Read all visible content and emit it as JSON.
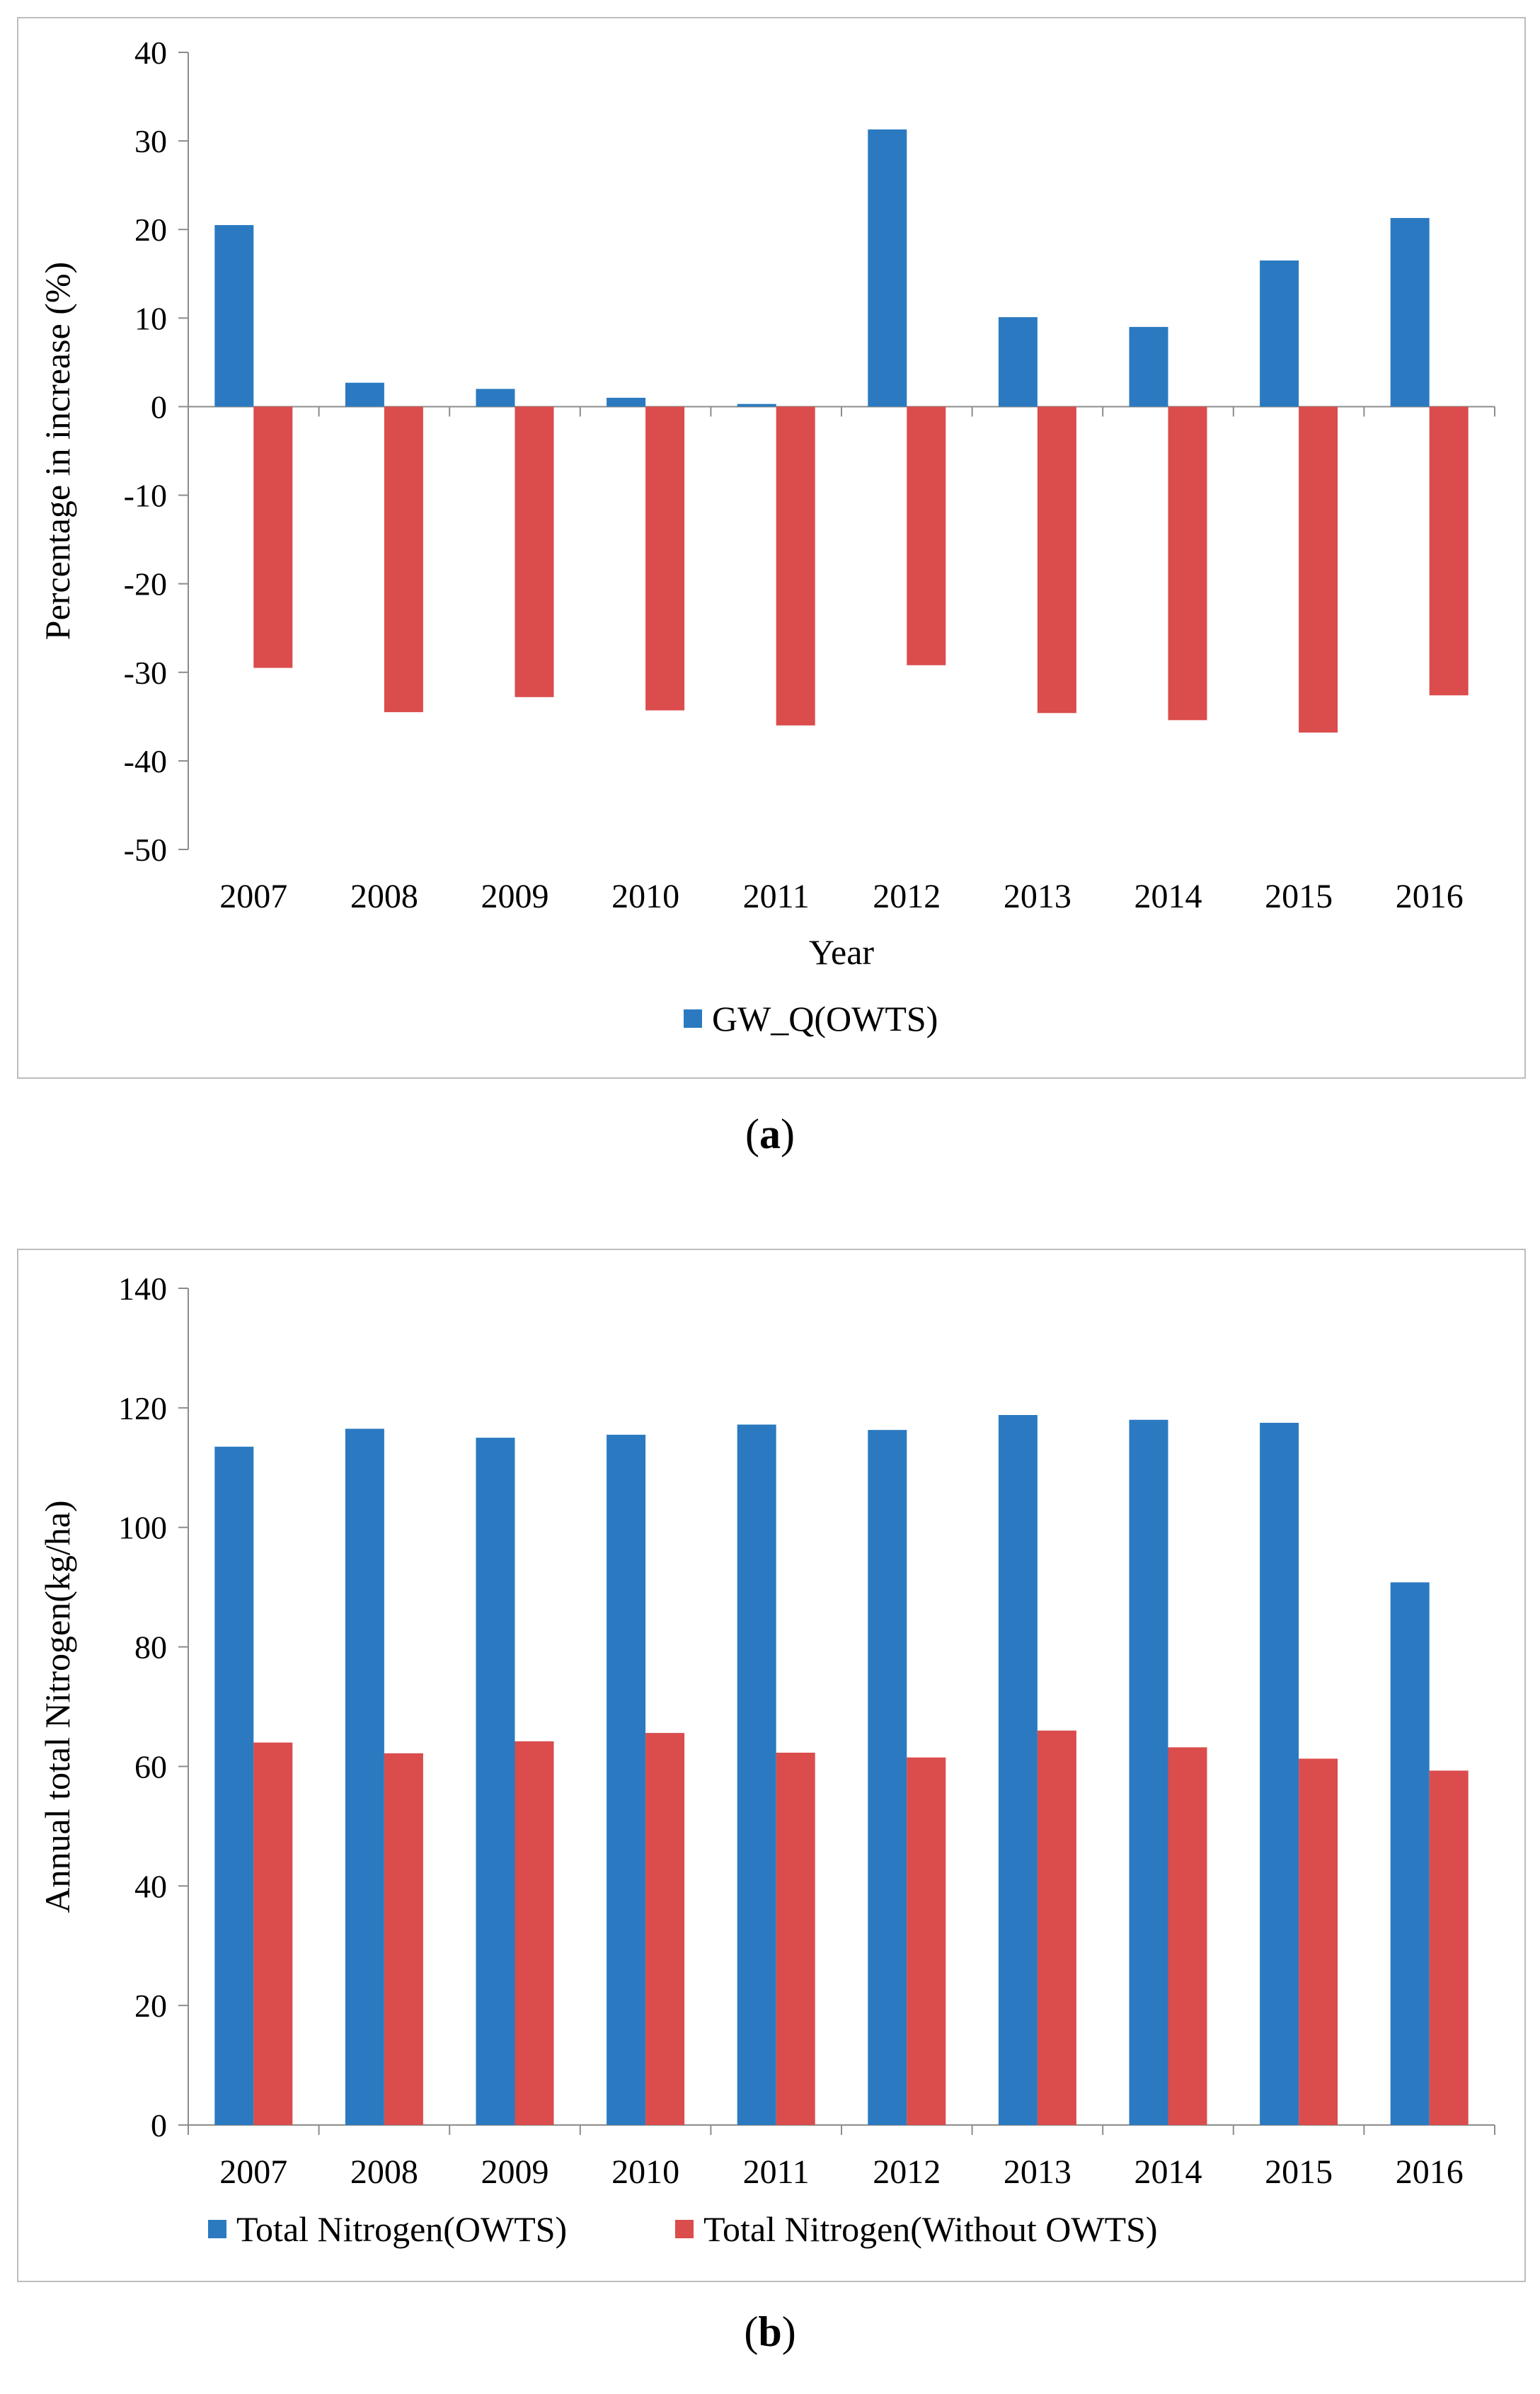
{
  "chart_data": [
    {
      "type": "bar",
      "panel": "a",
      "categories": [
        "2007",
        "2008",
        "2009",
        "2010",
        "2011",
        "2012",
        "2013",
        "2014",
        "2015",
        "2016"
      ],
      "series": [
        {
          "name": "GW_Q(OWTS)",
          "color": "#2b7ac1",
          "values": [
            20.5,
            2.7,
            2.0,
            1.0,
            0.3,
            31.3,
            10.1,
            9.0,
            16.5,
            21.3
          ]
        },
        {
          "name": "",
          "color": "#db4c4c",
          "values": [
            -29.5,
            -34.5,
            -32.8,
            -34.3,
            -36.0,
            -29.2,
            -34.6,
            -35.4,
            -36.8,
            -32.6
          ]
        }
      ],
      "xlabel": "Year",
      "ylabel": "Percentage in increase (%)",
      "ylim": [
        -50,
        40
      ],
      "yticks": [
        "40",
        "30",
        "20",
        "10",
        "0",
        "-10",
        "-20",
        "-30",
        "-40",
        "-50"
      ],
      "ytick_values": [
        40,
        30,
        20,
        10,
        0,
        -10,
        -20,
        -30,
        -40,
        -50
      ],
      "legend": [
        "GW_Q(OWTS)"
      ],
      "legend_position": "bottom"
    },
    {
      "type": "bar",
      "panel": "b",
      "categories": [
        "2007",
        "2008",
        "2009",
        "2010",
        "2011",
        "2012",
        "2013",
        "2014",
        "2015",
        "2016"
      ],
      "series": [
        {
          "name": "Total Nitrogen(OWTS)",
          "color": "#2b7ac1",
          "values": [
            113.5,
            116.5,
            115.0,
            115.5,
            117.2,
            116.3,
            118.8,
            118.0,
            117.5,
            90.8
          ]
        },
        {
          "name": "Total Nitrogen(Without OWTS)",
          "color": "#db4c4c",
          "values": [
            64.0,
            62.2,
            64.2,
            65.6,
            62.3,
            61.5,
            66.0,
            63.2,
            61.3,
            59.3
          ]
        }
      ],
      "xlabel": "",
      "ylabel": "Annual total Nitrogen(kg/ha)",
      "ylim": [
        0,
        140
      ],
      "yticks": [
        "140",
        "120",
        "100",
        "80",
        "60",
        "40",
        "20",
        "0"
      ],
      "ytick_values": [
        140,
        120,
        100,
        80,
        60,
        40,
        20,
        0
      ],
      "legend": [
        "Total Nitrogen(OWTS)",
        "Total Nitrogen(Without OWTS)"
      ],
      "legend_position": "bottom"
    }
  ],
  "captions": {
    "a": "a",
    "b": "b"
  }
}
